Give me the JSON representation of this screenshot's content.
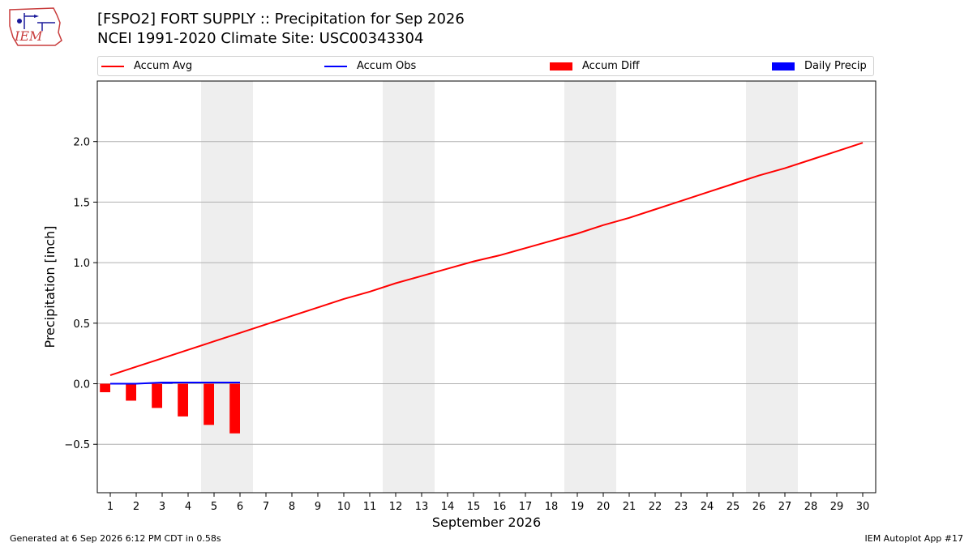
{
  "header": {
    "title_line_1": "[FSPO2] FORT SUPPLY :: Precipitation for Sep 2026",
    "title_line_2": "NCEI 1991-2020 Climate Site: USC00343304",
    "logo_text": "IEM"
  },
  "footer": {
    "left": "Generated at 6 Sep 2026 6:12 PM CDT in 0.58s",
    "right": "IEM Autoplot App #17"
  },
  "colors": {
    "accum_avg": "#ff0000",
    "accum_obs": "#0000ff",
    "accum_diff": "#ff0000",
    "daily_precip": "#0000ff",
    "weekend_shade": "#eeeeee",
    "grid": "#b0b0b0"
  },
  "chart_data": {
    "type": "line",
    "xlabel": "September 2026",
    "ylabel": "Precipitation [inch]",
    "xlim": [
      0.5,
      30.5
    ],
    "ylim": [
      -0.9,
      2.5
    ],
    "yticks": [
      -0.5,
      0.0,
      0.5,
      1.0,
      1.5,
      2.0
    ],
    "ytick_labels": [
      "−0.5",
      "0.0",
      "0.5",
      "1.0",
      "1.5",
      "2.0"
    ],
    "x": [
      1,
      2,
      3,
      4,
      5,
      6,
      7,
      8,
      9,
      10,
      11,
      12,
      13,
      14,
      15,
      16,
      17,
      18,
      19,
      20,
      21,
      22,
      23,
      24,
      25,
      26,
      27,
      28,
      29,
      30
    ],
    "xtick_labels": [
      "1",
      "2",
      "3",
      "4",
      "5",
      "6",
      "7",
      "8",
      "9",
      "10",
      "11",
      "12",
      "13",
      "14",
      "15",
      "16",
      "17",
      "18",
      "19",
      "20",
      "21",
      "22",
      "23",
      "24",
      "25",
      "26",
      "27",
      "28",
      "29",
      "30"
    ],
    "grid": "horizontal",
    "legend_position": "top",
    "shaded_ranges": [
      [
        4.5,
        6.5
      ],
      [
        11.5,
        13.5
      ],
      [
        18.5,
        20.5
      ],
      [
        25.5,
        27.5
      ]
    ],
    "series": [
      {
        "name": "Accum Avg",
        "kind": "line",
        "x": [
          1,
          2,
          3,
          4,
          5,
          6,
          7,
          8,
          9,
          10,
          11,
          12,
          13,
          14,
          15,
          16,
          17,
          18,
          19,
          20,
          21,
          22,
          23,
          24,
          25,
          26,
          27,
          28,
          29,
          30
        ],
        "values": [
          0.07,
          0.14,
          0.21,
          0.28,
          0.35,
          0.42,
          0.49,
          0.56,
          0.63,
          0.7,
          0.76,
          0.83,
          0.89,
          0.95,
          1.01,
          1.06,
          1.12,
          1.18,
          1.24,
          1.31,
          1.37,
          1.44,
          1.51,
          1.58,
          1.65,
          1.72,
          1.78,
          1.85,
          1.92,
          1.99
        ]
      },
      {
        "name": "Accum Obs",
        "kind": "line",
        "x": [
          1,
          2,
          3,
          4,
          5,
          6
        ],
        "values": [
          0.0,
          0.0,
          0.01,
          0.01,
          0.01,
          0.01
        ]
      },
      {
        "name": "Accum Diff",
        "kind": "bar",
        "x": [
          1,
          2,
          3,
          4,
          5,
          6
        ],
        "values": [
          -0.07,
          -0.14,
          -0.2,
          -0.27,
          -0.34,
          -0.41
        ]
      },
      {
        "name": "Daily Precip",
        "kind": "bar",
        "x": [
          1,
          2,
          3,
          4,
          5,
          6
        ],
        "values": [
          0.0,
          0.0,
          0.01,
          0.0,
          0.0,
          0.0
        ]
      }
    ]
  }
}
